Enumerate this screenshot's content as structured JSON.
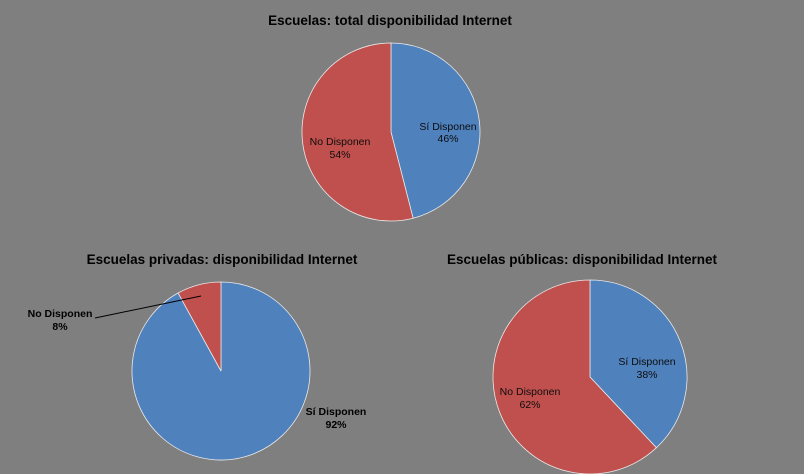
{
  "colors": {
    "background": "#7f7f7f",
    "si": "#4f81bd",
    "no": "#c0504d",
    "slice_stroke": "#e9e9e9"
  },
  "chart_data": [
    {
      "type": "pie",
      "title": "Escuelas: total disponibilidad Internet",
      "slices": [
        {
          "label": "Sí Disponen",
          "value": 46,
          "value_label": "46%",
          "color": "#4f81bd"
        },
        {
          "label": "No Disponen",
          "value": 54,
          "value_label": "54%",
          "color": "#c0504d"
        }
      ]
    },
    {
      "type": "pie",
      "title": "Escuelas privadas: disponibilidad Internet",
      "slices": [
        {
          "label": "Sí Disponen",
          "value": 92,
          "value_label": "92%",
          "color": "#4f81bd"
        },
        {
          "label": "No Disponen",
          "value": 8,
          "value_label": "8%",
          "color": "#c0504d"
        }
      ]
    },
    {
      "type": "pie",
      "title": "Escuelas públicas: disponibilidad Internet",
      "slices": [
        {
          "label": "Sí Disponen",
          "value": 38,
          "value_label": "38%",
          "color": "#4f81bd"
        },
        {
          "label": "No Disponen",
          "value": 62,
          "value_label": "62%",
          "color": "#c0504d"
        }
      ]
    }
  ]
}
